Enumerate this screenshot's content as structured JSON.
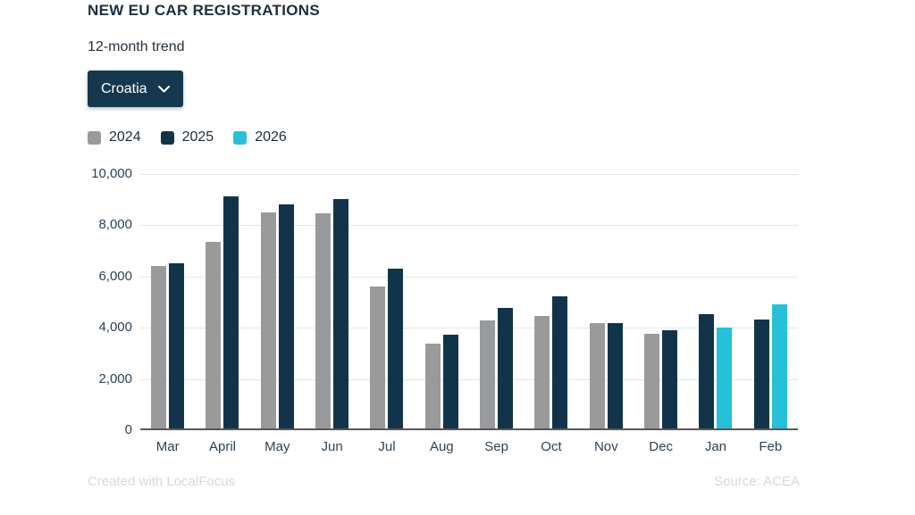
{
  "header": {
    "title": "NEW EU CAR REGISTRATIONS",
    "subtitle": "12-month trend"
  },
  "filter": {
    "selected_country": "Croatia"
  },
  "chart_data": {
    "type": "bar",
    "title": "NEW EU CAR REGISTRATIONS",
    "subtitle": "12-month trend",
    "categories": [
      "Mar",
      "April",
      "May",
      "Jun",
      "Jul",
      "Aug",
      "Sep",
      "Oct",
      "Nov",
      "Dec",
      "Jan",
      "Feb"
    ],
    "series": [
      {
        "name": "2024",
        "color": "#989a9c",
        "values": [
          6350,
          7300,
          8450,
          8400,
          5550,
          3300,
          4200,
          4400,
          4100,
          3700,
          null,
          null
        ]
      },
      {
        "name": "2025",
        "color": "#12344a",
        "values": [
          6450,
          9050,
          8750,
          8950,
          6250,
          3650,
          4700,
          5150,
          4100,
          3850,
          4450,
          4250
        ]
      },
      {
        "name": "2026",
        "color": "#26c1d9",
        "values": [
          null,
          null,
          null,
          null,
          null,
          null,
          null,
          null,
          null,
          null,
          3950,
          4850
        ]
      }
    ],
    "ylim": [
      0,
      10000
    ],
    "yticks": [
      0,
      2000,
      4000,
      6000,
      8000,
      10000
    ],
    "ytick_labels": [
      "0",
      "2,000",
      "4,000",
      "6,000",
      "8,000",
      "10,000"
    ],
    "xlabel": "",
    "ylabel": "",
    "grid": true,
    "legend_position": "top-left"
  },
  "footer": {
    "credit": "Created with LocalFocus",
    "source": "Source:  ACEA"
  },
  "colors": {
    "accent_navy": "#15384e",
    "gridline": "#e3e6e9",
    "axis_line": "#55575a",
    "text": "#1c2f3f"
  }
}
